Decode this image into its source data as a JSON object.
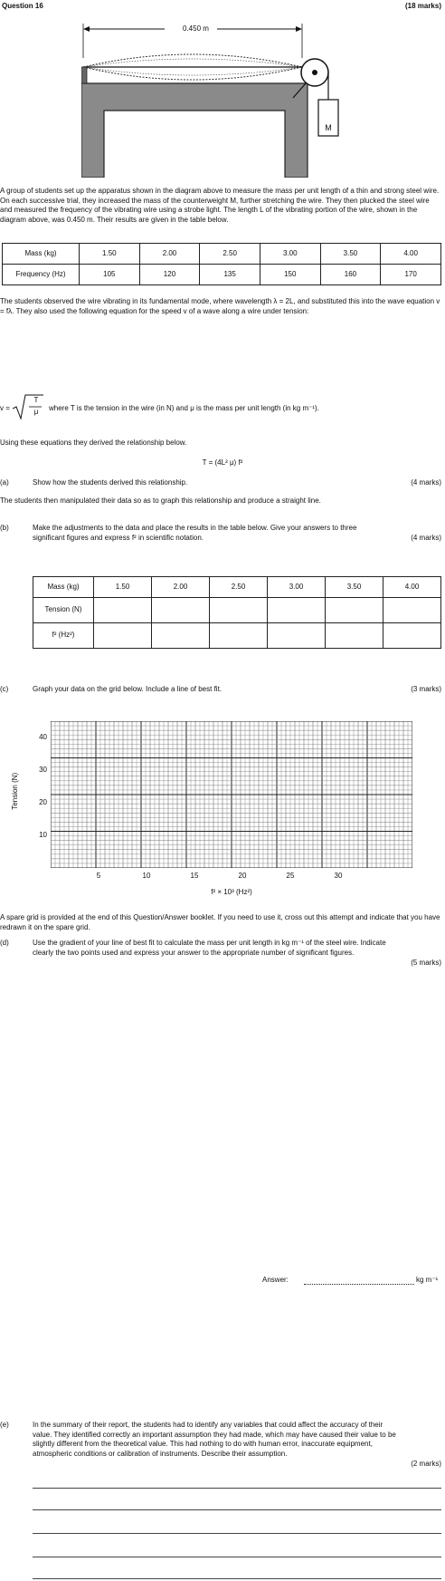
{
  "header": {
    "question": "Question 16",
    "marks": "(18 marks)"
  },
  "diagram": {
    "length_label": "0.450 m",
    "mass_label": "M"
  },
  "intro": "A group of students set up the apparatus shown in the diagram above to measure the mass per unit length of a thin and strong steel wire. On each successive trial, they increased the mass of the counterweight M, further stretching the wire. They then plucked the steel wire and measured the frequency of the vibrating wire using a strobe light. The length L of the vibrating portion of the wire, shown in the diagram above, was 0.450 m. Their results are given in the table below.",
  "table1": {
    "row_mass_label": "Mass (kg)",
    "row_freq_label": "Frequency (Hz)",
    "mass": [
      "1.50",
      "2.00",
      "2.50",
      "3.00",
      "3.50",
      "4.00"
    ],
    "freq": [
      "105",
      "120",
      "135",
      "150",
      "160",
      "170"
    ]
  },
  "para2": "The students observed the wire vibrating in its fundamental mode, where wavelength λ = 2L, and substituted this into the wave equation v = fλ. They also used the following equation for the speed v of a wave along a wire under tension:",
  "formula": {
    "v": "v =",
    "num": "T",
    "den": "μ",
    "desc": "where T is the tension in the wire (in N) and μ is the mass per unit length (in kg m⁻¹)."
  },
  "para3": "Using these equations they derived the relationship below.",
  "relationship": "T = (4L² μ) f²",
  "part_a": {
    "label": "(a)",
    "text": "Show how the students derived this relationship.",
    "marks": "(4 marks)"
  },
  "para4": "The students then manipulated their data so as to graph this relationship and produce a straight line.",
  "part_b": {
    "label": "(b)",
    "text": "Make the adjustments to the data and place the results in the table below. Give your answers to three significant figures and express f² in scientific notation.",
    "marks": "(4 marks)"
  },
  "table2": {
    "row_mass_label": "Mass (kg)",
    "row_tension_label": "Tension (N)",
    "row_f2_label": "f² (Hz²)",
    "mass": [
      "1.50",
      "2.00",
      "2.50",
      "3.00",
      "3.50",
      "4.00"
    ]
  },
  "part_c": {
    "label": "(c)",
    "text": "Graph your data on the grid below. Include a line of best fit.",
    "marks": "(3 marks)"
  },
  "graph": {
    "y_label": "Tension (N)",
    "x_label": "f² × 10³ (Hz²)",
    "x_ticks": [
      "5",
      "10",
      "15",
      "20",
      "25",
      "30"
    ],
    "y_ticks": [
      "10",
      "20",
      "30",
      "40"
    ]
  },
  "spare_note": "A spare grid is provided at the end of this Question/Answer booklet. If you need to use it, cross out this attempt and indicate that you have redrawn it on the spare grid.",
  "part_d": {
    "label": "(d)",
    "text": "Use the gradient of your line of best fit to calculate the mass per unit length in kg m⁻¹ of the steel wire. Indicate clearly the two points used and express your answer to the appropriate number of significant figures.",
    "marks": "(5 marks)"
  },
  "answer": {
    "label": "Answer:",
    "unit": "kg m⁻¹"
  },
  "part_e": {
    "label": "(e)",
    "text": "In the summary of their report, the students had to identify any variables that could affect the accuracy of their value. They identified correctly an important assumption they had made, which may have caused their value to be slightly different from the theoretical value. This had nothing to do with human error, inaccurate equipment, atmospheric conditions or calibration of instruments. Describe their assumption.",
    "marks": "(2 marks)"
  }
}
